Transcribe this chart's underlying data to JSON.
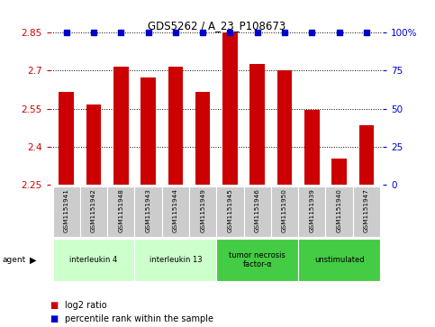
{
  "title": "GDS5262 / A_23_P108673",
  "samples": [
    "GSM1151941",
    "GSM1151942",
    "GSM1151948",
    "GSM1151943",
    "GSM1151944",
    "GSM1151949",
    "GSM1151945",
    "GSM1151946",
    "GSM1151950",
    "GSM1151939",
    "GSM1151940",
    "GSM1151947"
  ],
  "log2_values": [
    2.615,
    2.565,
    2.715,
    2.675,
    2.715,
    2.615,
    2.85,
    2.725,
    2.7,
    2.545,
    2.355,
    2.485
  ],
  "percentile_values": [
    100,
    100,
    100,
    100,
    100,
    100,
    100,
    100,
    100,
    100,
    100,
    100
  ],
  "bar_color": "#cc0000",
  "percentile_color": "#0000cc",
  "ymin": 2.25,
  "ymax": 2.85,
  "yticks": [
    2.25,
    2.4,
    2.55,
    2.7,
    2.85
  ],
  "ytick_labels": [
    "2.25",
    "2.4",
    "2.55",
    "2.7",
    "2.85"
  ],
  "y2ticks": [
    0,
    25,
    50,
    75,
    100
  ],
  "y2tick_labels": [
    "0",
    "25",
    "50",
    "75",
    "100%"
  ],
  "groups": [
    {
      "label": "interleukin 4",
      "start": 0,
      "end": 3,
      "color": "#ccffcc"
    },
    {
      "label": "interleukin 13",
      "start": 3,
      "end": 6,
      "color": "#ccffcc"
    },
    {
      "label": "tumor necrosis\nfactor-α",
      "start": 6,
      "end": 9,
      "color": "#44cc44"
    },
    {
      "label": "unstimulated",
      "start": 9,
      "end": 12,
      "color": "#44cc44"
    }
  ],
  "bar_color_legend": "#cc0000",
  "dot_color_legend": "#0000cc",
  "bar_width": 0.55,
  "tick_color_left": "#cc0000",
  "tick_color_right": "#0000cc",
  "sample_box_color": "#cccccc",
  "grid_linestyle": "dotted",
  "grid_color": "#000000",
  "grid_linewidth": 0.7
}
